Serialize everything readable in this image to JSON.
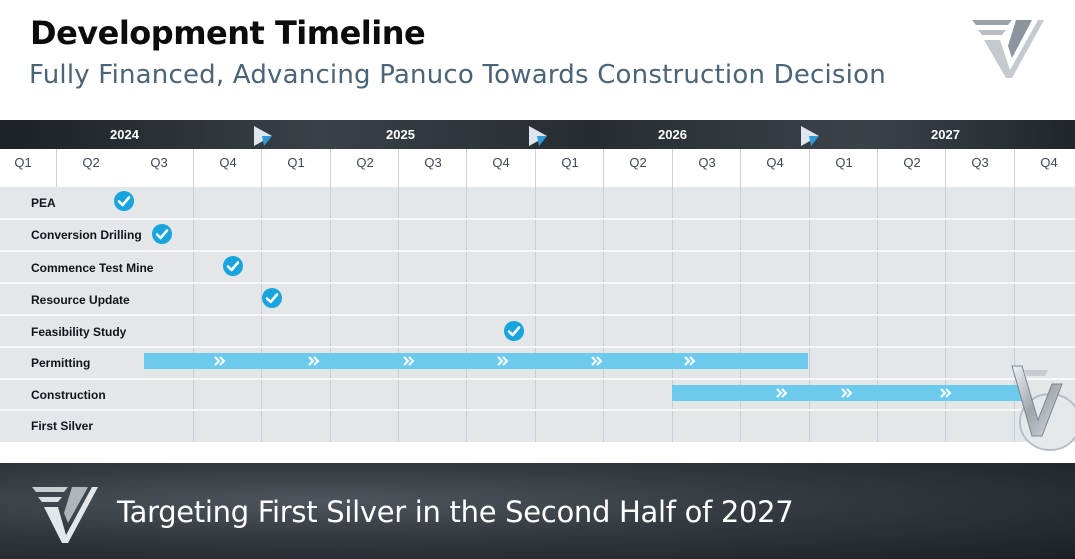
{
  "header": {
    "title": "Development Timeline",
    "subtitle": "Fully Financed, Advancing Panuco Towards Construction Decision"
  },
  "years": [
    "2024",
    "2025",
    "2026",
    "2027"
  ],
  "quarters": [
    "Q1",
    "Q2",
    "Q3",
    "Q4",
    "Q1",
    "Q2",
    "Q3",
    "Q4",
    "Q1",
    "Q2",
    "Q3",
    "Q4",
    "Q1",
    "Q2",
    "Q3",
    "Q4"
  ],
  "rows": [
    {
      "label": "PEA",
      "status": "complete"
    },
    {
      "label": "Conversion Drilling",
      "status": "complete"
    },
    {
      "label": "Commence Test Mine",
      "status": "complete"
    },
    {
      "label": "Resource Update",
      "status": "complete"
    },
    {
      "label": "Feasibility Study",
      "status": "complete"
    },
    {
      "label": "Permitting",
      "status": "in-progress"
    },
    {
      "label": "Construction",
      "status": "planned"
    },
    {
      "label": "First Silver",
      "status": "planned"
    }
  ],
  "colors": {
    "accent": "#18a4dd",
    "bar": "#6ccbec",
    "grid_bg": "#e3e7ea",
    "subtitle": "#4a6478"
  },
  "icons": {
    "milestone_complete": "checkmark-circle-icon",
    "year_marker": "triangle-marker-icon",
    "bar_progress": "double-chevron-icon",
    "brand": "company-logo"
  },
  "footer": {
    "text": "Targeting First Silver in the Second Half of 2027"
  }
}
